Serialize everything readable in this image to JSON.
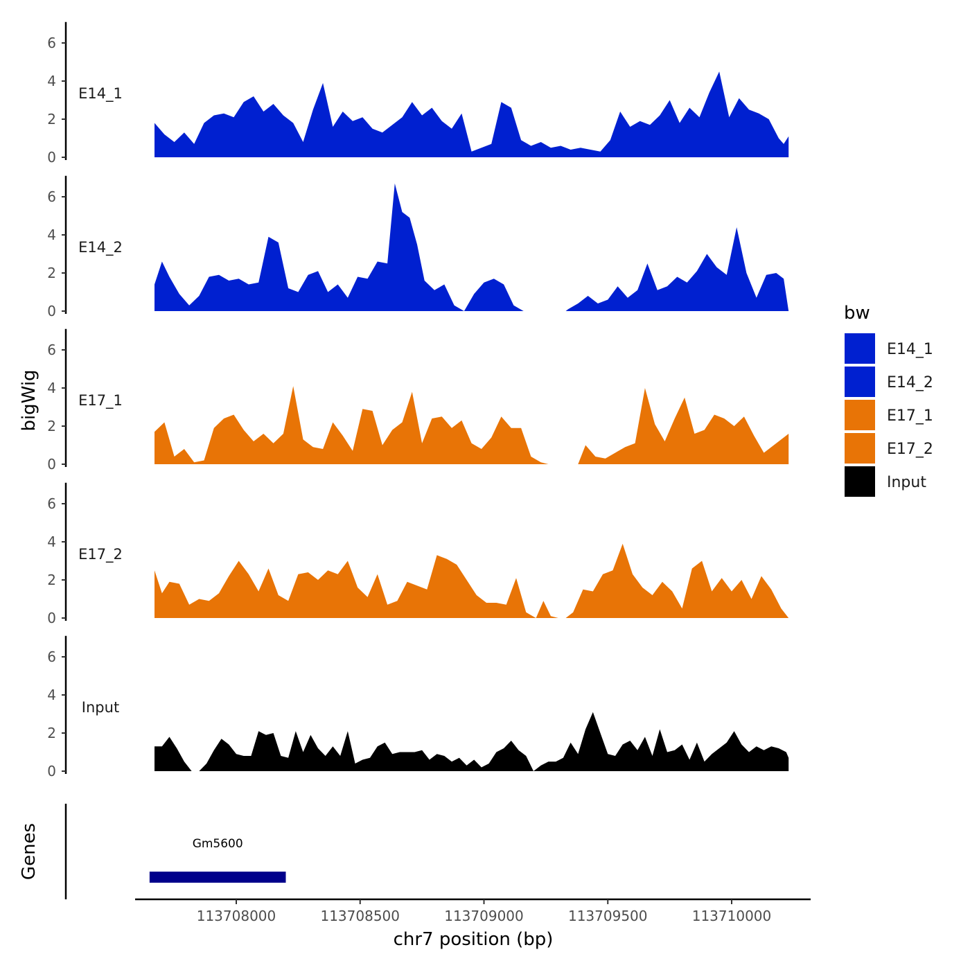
{
  "chart_data": {
    "type": "area",
    "xlabel": "chr7 position (bp)",
    "ylabel": "bigWig",
    "xlim": [
      113707670,
      113710230
    ],
    "ylim": [
      0,
      7
    ],
    "y_ticks": [
      0,
      2,
      4,
      6
    ],
    "x_ticks": [
      113708000,
      113708500,
      113709000,
      113709500,
      113710000
    ],
    "x_tick_labels": [
      "113708000",
      "113708500",
      "113709000",
      "113709500",
      "113710000"
    ],
    "legend": {
      "title": "bw",
      "position": "right",
      "entries": [
        {
          "name": "E14_1",
          "color": "#0020D0"
        },
        {
          "name": "E14_2",
          "color": "#0020D0"
        },
        {
          "name": "E17_1",
          "color": "#E87406"
        },
        {
          "name": "E17_2",
          "color": "#E87406"
        },
        {
          "name": "Input",
          "color": "#000000"
        }
      ]
    },
    "series": [
      {
        "name": "E14_1",
        "label": "E14_1",
        "color": "#0020D0",
        "x": [
          113707670,
          113707710,
          113707750,
          113707790,
          113707830,
          113707870,
          113707910,
          113707950,
          113707990,
          113708030,
          113708070,
          113708110,
          113708150,
          113708190,
          113708230,
          113708270,
          113708310,
          113708350,
          113708390,
          113708430,
          113708470,
          113708510,
          113708550,
          113708590,
          113708630,
          113708670,
          113708710,
          113708750,
          113708790,
          113708830,
          113708870,
          113708910,
          113708950,
          113708990,
          113709030,
          113709070,
          113709110,
          113709150,
          113709190,
          113709230,
          113709270,
          113709310,
          113709350,
          113709390,
          113709430,
          113709470,
          113709510,
          113709550,
          113709590,
          113709630,
          113709670,
          113709710,
          113709750,
          113709790,
          113709830,
          113709870,
          113709910,
          113709950,
          113709990,
          113710030,
          113710070,
          113710110,
          113710150,
          113710190,
          113710210,
          113710230
        ],
        "values": [
          1.8,
          1.2,
          0.8,
          1.3,
          0.7,
          1.8,
          2.2,
          2.3,
          2.1,
          2.9,
          3.2,
          2.4,
          2.8,
          2.2,
          1.8,
          0.8,
          2.5,
          3.9,
          1.6,
          2.4,
          1.9,
          2.1,
          1.5,
          1.3,
          1.7,
          2.1,
          2.9,
          2.2,
          2.6,
          1.9,
          1.5,
          2.3,
          0.3,
          0.5,
          0.7,
          2.9,
          2.6,
          0.9,
          0.6,
          0.8,
          0.5,
          0.6,
          0.4,
          0.5,
          0.4,
          0.3,
          0.9,
          2.4,
          1.6,
          1.9,
          1.7,
          2.2,
          3.0,
          1.8,
          2.6,
          2.1,
          3.4,
          4.5,
          2.1,
          3.1,
          2.5,
          2.3,
          2.0,
          1.0,
          0.7,
          1.1
        ]
      },
      {
        "name": "E14_2",
        "label": "E14_2",
        "color": "#0020D0",
        "x": [
          113707670,
          113707700,
          113707730,
          113707770,
          113707810,
          113707850,
          113707890,
          113707930,
          113707970,
          113708010,
          113708050,
          113708090,
          113708130,
          113708170,
          113708210,
          113708250,
          113708290,
          113708330,
          113708370,
          113708410,
          113708450,
          113708490,
          113708530,
          113708570,
          113708610,
          113708640,
          113708670,
          113708700,
          113708730,
          113708760,
          113708800,
          113708840,
          113708880,
          113708920,
          113708960,
          113709000,
          113709040,
          113709080,
          113709120,
          113709160,
          113709200,
          113709240,
          113709280,
          113709310,
          113709330,
          113709340,
          113709380,
          113709420,
          113709460,
          113709500,
          113709540,
          113709580,
          113709620,
          113709660,
          113709700,
          113709740,
          113709780,
          113709820,
          113709860,
          113709900,
          113709940,
          113709980,
          113710020,
          113710060,
          113710100,
          113710140,
          113710180,
          113710210,
          113710230
        ],
        "values": [
          1.4,
          2.6,
          1.8,
          0.9,
          0.3,
          0.8,
          1.8,
          1.9,
          1.6,
          1.7,
          1.4,
          1.5,
          3.9,
          3.6,
          1.2,
          1.0,
          1.9,
          2.1,
          1.0,
          1.4,
          0.7,
          1.8,
          1.7,
          2.6,
          2.5,
          6.7,
          5.2,
          4.9,
          3.5,
          1.6,
          1.1,
          1.4,
          0.3,
          0.0,
          0.9,
          1.5,
          1.7,
          1.4,
          0.3,
          0.0,
          0.0,
          0.0,
          0.0,
          0.0,
          0.0,
          0.1,
          0.4,
          0.8,
          0.4,
          0.6,
          1.3,
          0.7,
          1.1,
          2.5,
          1.1,
          1.3,
          1.8,
          1.5,
          2.1,
          3.0,
          2.3,
          1.9,
          4.4,
          2.0,
          0.7,
          1.9,
          2.0,
          1.7,
          0.0
        ]
      },
      {
        "name": "E17_1",
        "label": "E17_1",
        "color": "#E87406",
        "x": [
          113707670,
          113707710,
          113707750,
          113707790,
          113707830,
          113707870,
          113707910,
          113707950,
          113707990,
          113708030,
          113708070,
          113708110,
          113708150,
          113708190,
          113708230,
          113708270,
          113708310,
          113708350,
          113708390,
          113708430,
          113708470,
          113708510,
          113708550,
          113708590,
          113708630,
          113708670,
          113708710,
          113708750,
          113708790,
          113708830,
          113708870,
          113708910,
          113708950,
          113708990,
          113709030,
          113709070,
          113709110,
          113709150,
          113709190,
          113709230,
          113709260,
          113709290,
          113709320,
          113709350,
          113709380,
          113709410,
          113709450,
          113709490,
          113709530,
          113709570,
          113709610,
          113709650,
          113709690,
          113709730,
          113709770,
          113709810,
          113709850,
          113709890,
          113709930,
          113709970,
          113710010,
          113710050,
          113710090,
          113710130,
          113710170,
          113710210,
          113710230
        ],
        "values": [
          1.7,
          2.2,
          0.4,
          0.8,
          0.1,
          0.2,
          1.9,
          2.4,
          2.6,
          1.8,
          1.2,
          1.6,
          1.1,
          1.6,
          4.1,
          1.3,
          0.9,
          0.8,
          2.2,
          1.5,
          0.7,
          2.9,
          2.8,
          1.0,
          1.8,
          2.2,
          3.8,
          1.1,
          2.4,
          2.5,
          1.9,
          2.3,
          1.1,
          0.8,
          1.4,
          2.5,
          1.9,
          1.9,
          0.4,
          0.1,
          0.0,
          0.0,
          0.0,
          0.0,
          0.0,
          1.0,
          0.4,
          0.3,
          0.6,
          0.9,
          1.1,
          4.0,
          2.1,
          1.2,
          2.4,
          3.5,
          1.6,
          1.8,
          2.6,
          2.4,
          2.0,
          2.5,
          1.5,
          0.6,
          1.0,
          1.4,
          1.6
        ]
      },
      {
        "name": "E17_2",
        "label": "E17_2",
        "color": "#E87406",
        "x": [
          113707670,
          113707700,
          113707730,
          113707770,
          113707810,
          113707850,
          113707890,
          113707930,
          113707970,
          113708010,
          113708050,
          113708090,
          113708130,
          113708170,
          113708210,
          113708250,
          113708290,
          113708330,
          113708370,
          113708410,
          113708450,
          113708490,
          113708530,
          113708570,
          113708610,
          113708650,
          113708690,
          113708730,
          113708770,
          113708810,
          113708850,
          113708890,
          113708930,
          113708970,
          113709010,
          113709050,
          113709090,
          113709130,
          113709170,
          113709210,
          113709240,
          113709270,
          113709300,
          113709330,
          113709360,
          113709400,
          113709440,
          113709480,
          113709520,
          113709560,
          113709600,
          113709640,
          113709680,
          113709720,
          113709760,
          113709800,
          113709840,
          113709880,
          113709920,
          113709960,
          113710000,
          113710040,
          113710080,
          113710120,
          113710160,
          113710200,
          113710230
        ],
        "values": [
          2.5,
          1.3,
          1.9,
          1.8,
          0.7,
          1.0,
          0.9,
          1.3,
          2.2,
          3.0,
          2.3,
          1.4,
          2.6,
          1.2,
          0.9,
          2.3,
          2.4,
          2.0,
          2.5,
          2.3,
          3.0,
          1.6,
          1.1,
          2.3,
          0.7,
          0.9,
          1.9,
          1.7,
          1.5,
          3.3,
          3.1,
          2.8,
          2.0,
          1.2,
          0.8,
          0.8,
          0.7,
          2.1,
          0.3,
          0.0,
          0.9,
          0.1,
          0.0,
          0.0,
          0.3,
          1.5,
          1.4,
          2.3,
          2.5,
          3.9,
          2.3,
          1.6,
          1.2,
          1.9,
          1.4,
          0.5,
          2.6,
          3.0,
          1.4,
          2.1,
          1.4,
          2.0,
          1.0,
          2.2,
          1.5,
          0.5,
          0.0
        ]
      },
      {
        "name": "Input",
        "label": "Input",
        "color": "#000000",
        "x": [
          113707670,
          113707700,
          113707730,
          113707760,
          113707790,
          113707820,
          113707850,
          113707880,
          113707910,
          113707940,
          113707970,
          113708000,
          113708030,
          113708060,
          113708090,
          113708120,
          113708150,
          113708180,
          113708210,
          113708240,
          113708270,
          113708300,
          113708330,
          113708360,
          113708390,
          113708420,
          113708450,
          113708480,
          113708510,
          113708540,
          113708570,
          113708600,
          113708630,
          113708660,
          113708690,
          113708720,
          113708750,
          113708780,
          113708810,
          113708840,
          113708870,
          113708900,
          113708930,
          113708960,
          113708990,
          113709020,
          113709050,
          113709080,
          113709110,
          113709140,
          113709170,
          113709200,
          113709230,
          113709260,
          113709290,
          113709320,
          113709350,
          113709380,
          113709410,
          113709440,
          113709470,
          113709500,
          113709530,
          113709560,
          113709590,
          113709620,
          113709650,
          113709680,
          113709710,
          113709740,
          113709770,
          113709800,
          113709830,
          113709860,
          113709890,
          113709920,
          113709950,
          113709980,
          113710010,
          113710040,
          113710070,
          113710100,
          113710130,
          113710160,
          113710190,
          113710220,
          113710230
        ],
        "values": [
          1.3,
          1.3,
          1.8,
          1.2,
          0.5,
          0.0,
          0.0,
          0.4,
          1.1,
          1.7,
          1.4,
          0.9,
          0.8,
          0.8,
          2.1,
          1.9,
          2.0,
          0.8,
          0.7,
          2.1,
          1.0,
          1.9,
          1.2,
          0.8,
          1.3,
          0.8,
          2.1,
          0.4,
          0.6,
          0.7,
          1.3,
          1.5,
          0.9,
          1.0,
          1.0,
          1.0,
          1.1,
          0.6,
          0.9,
          0.8,
          0.5,
          0.7,
          0.3,
          0.6,
          0.2,
          0.4,
          1.0,
          1.2,
          1.6,
          1.1,
          0.8,
          0.0,
          0.3,
          0.5,
          0.5,
          0.7,
          1.5,
          0.9,
          2.2,
          3.1,
          2.0,
          0.9,
          0.8,
          1.4,
          1.6,
          1.1,
          1.8,
          0.8,
          2.2,
          1.0,
          1.1,
          1.4,
          0.6,
          1.5,
          0.5,
          0.9,
          1.2,
          1.5,
          2.1,
          1.4,
          1.0,
          1.3,
          1.1,
          1.3,
          1.2,
          1.0,
          0.7
        ]
      }
    ],
    "genes": {
      "label": "Genes",
      "items": [
        {
          "name": "Gm5600",
          "start": 113707650,
          "end": 113708200,
          "color": "#00008B"
        }
      ]
    }
  }
}
